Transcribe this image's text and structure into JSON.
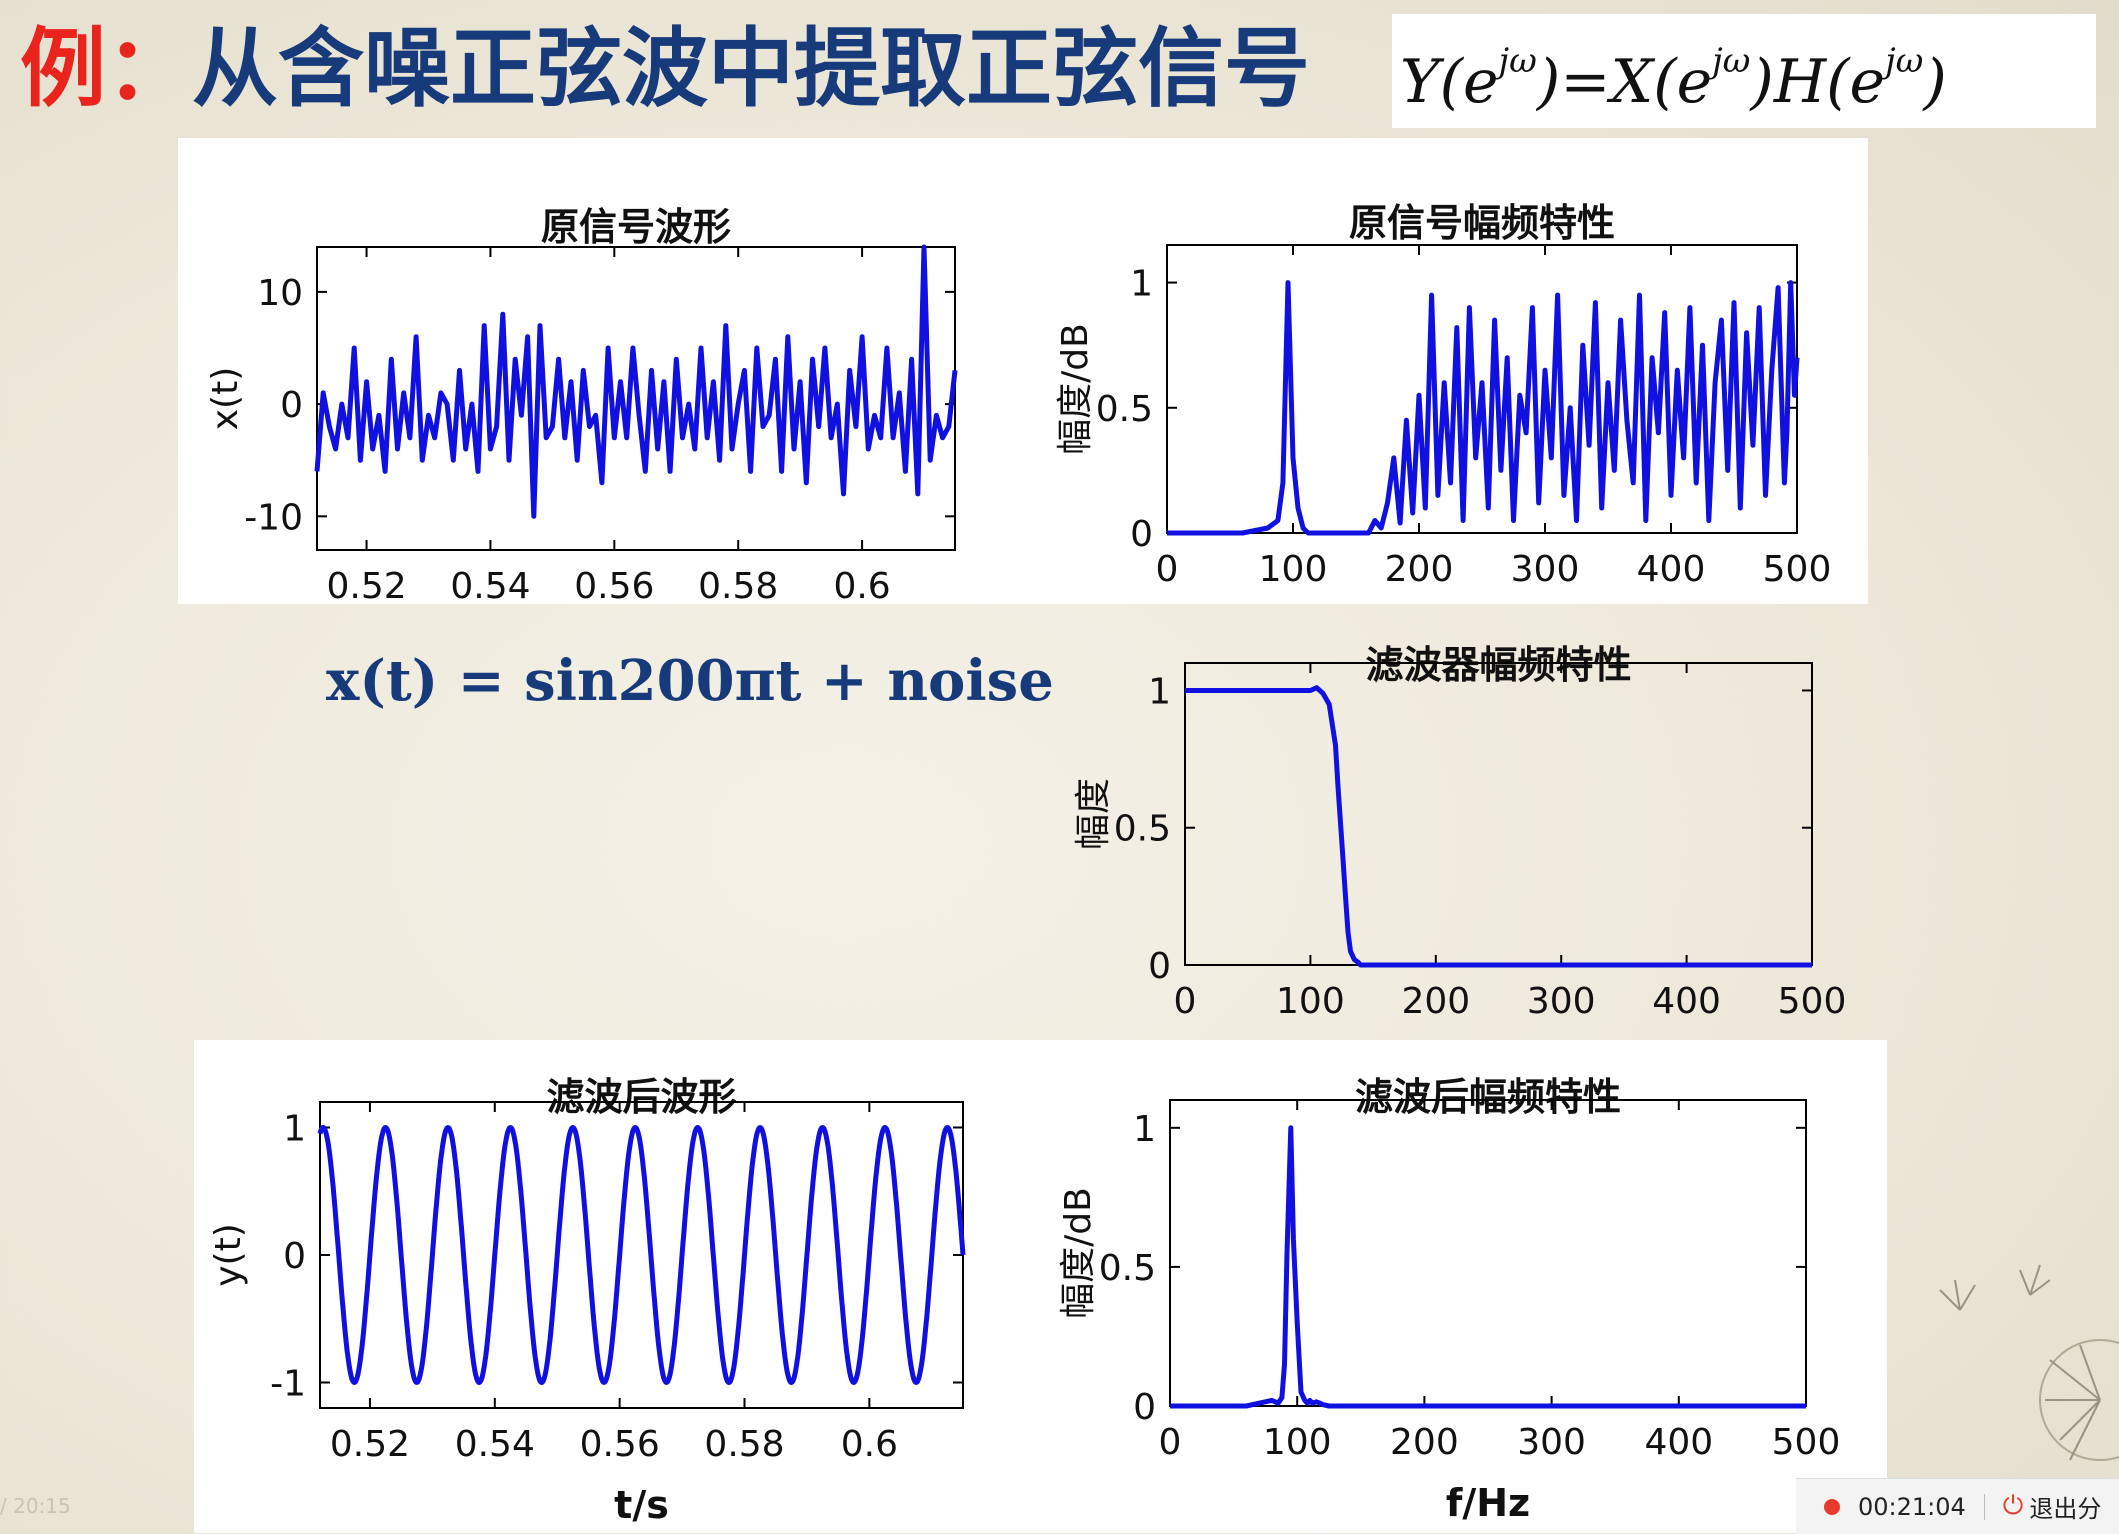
{
  "slide": {
    "title_prefix": "例：",
    "title_main": "从含噪正弦波中提取正弦信号",
    "formula_parts": [
      "Y(e",
      "jω",
      ")=X(e",
      "jω",
      ")H(e",
      "jω",
      ")"
    ],
    "signal_formula": "x(t) = sin200πt + noise"
  },
  "status_bar": {
    "elapsed": "00:21:04",
    "exit_label": "退出分",
    "left_time": "/ 20:15",
    "rec_color": "#e63a2e"
  },
  "line_color": "#1010e0",
  "chart_data": [
    {
      "id": "orig-wave",
      "type": "line",
      "title": "原信号波形",
      "xlabel": "",
      "ylabel": "x(t)",
      "xlim": [
        0.512,
        0.615
      ],
      "ylim": [
        -13,
        14
      ],
      "xticks": [
        0.52,
        0.54,
        0.56,
        0.58,
        0.6
      ],
      "xtick_labels": [
        "0.52",
        "0.54",
        "0.56",
        "0.58",
        "0.6"
      ],
      "yticks": [
        -10,
        0,
        10
      ],
      "ytick_labels": [
        "-10",
        "0",
        "10"
      ],
      "x": [
        0.512,
        0.513,
        0.514,
        0.515,
        0.516,
        0.517,
        0.518,
        0.519,
        0.52,
        0.521,
        0.522,
        0.523,
        0.524,
        0.525,
        0.526,
        0.527,
        0.528,
        0.529,
        0.53,
        0.531,
        0.532,
        0.533,
        0.534,
        0.535,
        0.536,
        0.537,
        0.538,
        0.539,
        0.54,
        0.541,
        0.542,
        0.543,
        0.544,
        0.545,
        0.546,
        0.547,
        0.548,
        0.549,
        0.55,
        0.551,
        0.552,
        0.553,
        0.554,
        0.555,
        0.556,
        0.557,
        0.558,
        0.559,
        0.56,
        0.561,
        0.562,
        0.563,
        0.564,
        0.565,
        0.566,
        0.567,
        0.568,
        0.569,
        0.57,
        0.571,
        0.572,
        0.573,
        0.574,
        0.575,
        0.576,
        0.577,
        0.578,
        0.579,
        0.58,
        0.581,
        0.582,
        0.583,
        0.584,
        0.585,
        0.586,
        0.587,
        0.588,
        0.589,
        0.59,
        0.591,
        0.592,
        0.593,
        0.594,
        0.595,
        0.596,
        0.597,
        0.598,
        0.599,
        0.6,
        0.601,
        0.602,
        0.603,
        0.604,
        0.605,
        0.606,
        0.607,
        0.608,
        0.609,
        0.61,
        0.611,
        0.612,
        0.613,
        0.614,
        0.615
      ],
      "values": [
        -6,
        1,
        -2,
        -4,
        0,
        -3,
        5,
        -5,
        2,
        -4,
        -1,
        -6,
        4,
        -4,
        1,
        -3,
        6,
        -5,
        -1,
        -3,
        1,
        0,
        -5,
        3,
        -4,
        0,
        -6,
        7,
        -4,
        -2,
        8,
        -5,
        4,
        -1,
        6,
        -10,
        7,
        -3,
        -2,
        4,
        -3,
        2,
        -5,
        3,
        -2,
        -1,
        -7,
        5,
        -3,
        2,
        -3,
        5,
        -1,
        -6,
        3,
        -4,
        2,
        -6,
        4,
        -3,
        0,
        -4,
        5,
        -3,
        2,
        -5,
        7,
        -4,
        0,
        3,
        -6,
        5,
        -2,
        -1,
        4,
        -6,
        6,
        -4,
        2,
        -7,
        4,
        -2,
        5,
        -3,
        0,
        -8,
        3,
        -2,
        6,
        -4,
        -1,
        -3,
        5,
        -3,
        1,
        -6,
        4,
        -8,
        14,
        -5,
        -1,
        -3,
        -2,
        3
      ]
    },
    {
      "id": "orig-spectrum",
      "type": "line",
      "title": "原信号幅频特性",
      "xlabel": "",
      "ylabel": "幅度/dB",
      "xlim": [
        0,
        500
      ],
      "ylim": [
        0,
        1.15
      ],
      "xticks": [
        0,
        100,
        200,
        300,
        400,
        500
      ],
      "xtick_labels": [
        "0",
        "100",
        "200",
        "300",
        "400",
        "500"
      ],
      "yticks": [
        0,
        0.5,
        1
      ],
      "ytick_labels": [
        "0",
        "0.5",
        "1"
      ],
      "x": [
        0,
        20,
        40,
        60,
        70,
        80,
        88,
        92,
        96,
        100,
        104,
        108,
        112,
        120,
        140,
        150,
        160,
        165,
        170,
        175,
        180,
        185,
        190,
        195,
        200,
        205,
        210,
        215,
        220,
        225,
        230,
        235,
        240,
        245,
        250,
        255,
        260,
        265,
        270,
        275,
        280,
        285,
        290,
        295,
        300,
        305,
        310,
        315,
        320,
        325,
        330,
        335,
        340,
        345,
        350,
        355,
        360,
        365,
        370,
        375,
        380,
        385,
        390,
        395,
        400,
        405,
        410,
        415,
        420,
        425,
        430,
        435,
        440,
        445,
        450,
        455,
        460,
        465,
        470,
        475,
        480,
        485,
        490,
        492,
        495,
        498,
        500
      ],
      "values": [
        0,
        0,
        0,
        0,
        0.01,
        0.02,
        0.05,
        0.2,
        1,
        0.3,
        0.1,
        0.02,
        0,
        0,
        0,
        0,
        0,
        0.05,
        0.02,
        0.12,
        0.3,
        0.04,
        0.45,
        0.08,
        0.55,
        0.1,
        0.95,
        0.15,
        0.6,
        0.2,
        0.82,
        0.05,
        0.9,
        0.3,
        0.6,
        0.1,
        0.85,
        0.25,
        0.7,
        0.05,
        0.55,
        0.4,
        0.9,
        0.12,
        0.65,
        0.3,
        0.95,
        0.15,
        0.5,
        0.05,
        0.75,
        0.35,
        0.92,
        0.1,
        0.6,
        0.25,
        0.85,
        0.45,
        0.2,
        0.95,
        0.05,
        0.7,
        0.4,
        0.88,
        0.15,
        0.65,
        0.3,
        0.9,
        0.2,
        0.75,
        0.05,
        0.6,
        0.85,
        0.25,
        0.92,
        0.1,
        0.8,
        0.35,
        0.9,
        0.15,
        0.65,
        0.98,
        0.2,
        0.4,
        1,
        0.55,
        0.7
      ]
    },
    {
      "id": "filter-response",
      "type": "line",
      "title": "滤波器幅频特性",
      "xlabel": "",
      "ylabel": "幅度",
      "xlim": [
        0,
        500
      ],
      "ylim": [
        0,
        1.1
      ],
      "xticks": [
        0,
        100,
        200,
        300,
        400,
        500
      ],
      "xtick_labels": [
        "0",
        "100",
        "200",
        "300",
        "400",
        "500"
      ],
      "yticks": [
        0,
        0.5,
        1
      ],
      "ytick_labels": [
        "0",
        "0.5",
        "1"
      ],
      "x": [
        0,
        50,
        100,
        105,
        110,
        115,
        120,
        122,
        125,
        128,
        130,
        132,
        135,
        138,
        140,
        145,
        150,
        200,
        300,
        400,
        500
      ],
      "values": [
        1,
        1,
        1,
        1.01,
        0.99,
        0.95,
        0.8,
        0.65,
        0.45,
        0.25,
        0.12,
        0.05,
        0.02,
        0.01,
        0,
        0,
        0,
        0,
        0,
        0,
        0
      ]
    },
    {
      "id": "filtered-wave",
      "type": "line",
      "title": "滤波后波形",
      "xlabel": "t/s",
      "ylabel": "y(t)",
      "xlim": [
        0.512,
        0.615
      ],
      "ylim": [
        -1.2,
        1.2
      ],
      "xticks": [
        0.52,
        0.54,
        0.56,
        0.58,
        0.6
      ],
      "xtick_labels": [
        "0.52",
        "0.54",
        "0.56",
        "0.58",
        "0.6"
      ],
      "yticks": [
        -1,
        0,
        1
      ],
      "ytick_labels": [
        "-1",
        "0",
        "1"
      ],
      "function": "sin200πt"
    },
    {
      "id": "filtered-spectrum",
      "type": "line",
      "title": "滤波后幅频特性",
      "xlabel": "f/Hz",
      "ylabel": "幅度/dB",
      "xlim": [
        0,
        500
      ],
      "ylim": [
        0,
        1.1
      ],
      "xticks": [
        0,
        100,
        200,
        300,
        400,
        500
      ],
      "xtick_labels": [
        "0",
        "100",
        "200",
        "300",
        "400",
        "500"
      ],
      "yticks": [
        0,
        0.5,
        1
      ],
      "ytick_labels": [
        "0",
        "0.5",
        "1"
      ],
      "x": [
        0,
        60,
        70,
        75,
        80,
        85,
        88,
        90,
        92,
        95,
        97,
        100,
        103,
        106,
        108,
        110,
        112,
        115,
        118,
        120,
        125,
        130,
        200,
        300,
        400,
        500
      ],
      "values": [
        0,
        0,
        0.01,
        0.015,
        0.02,
        0.01,
        0.03,
        0.15,
        0.55,
        1,
        0.6,
        0.3,
        0.05,
        0.02,
        0.01,
        0.02,
        0.01,
        0.015,
        0.01,
        0.005,
        0,
        0,
        0,
        0,
        0,
        0
      ]
    }
  ]
}
